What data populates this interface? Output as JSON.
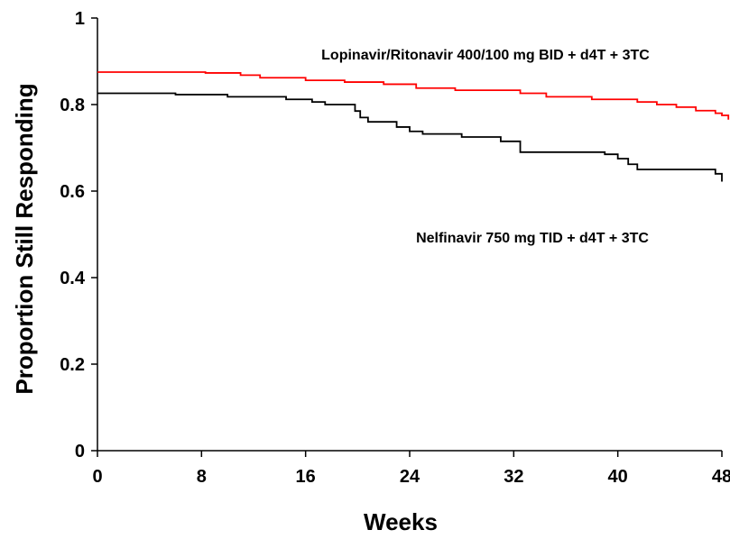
{
  "chart_data": {
    "type": "line",
    "title": "",
    "xlabel": "Weeks",
    "ylabel": "Proportion Still Responding",
    "xlim": [
      0,
      48
    ],
    "ylim": [
      0,
      1
    ],
    "xticks": [
      0,
      8,
      16,
      24,
      32,
      40,
      48
    ],
    "yticks": [
      0,
      0.2,
      0.4,
      0.6,
      0.8,
      1
    ],
    "xtick_labels": [
      "0",
      "8",
      "16",
      "24",
      "32",
      "40",
      "48"
    ],
    "ytick_labels": [
      "0",
      "0.2",
      "0.4",
      "0.6",
      "0.8",
      "1"
    ],
    "grid": false,
    "legend": "none",
    "series": [
      {
        "name": "Lopinavir/Ritonavir 400/100 mg BID + d4T + 3TC",
        "color": "#ff0000",
        "step": true,
        "x": [
          0,
          8.3,
          11.0,
          12.5,
          16.0,
          19.0,
          22.0,
          24.5,
          27.5,
          32.5,
          34.5,
          38.0,
          41.5,
          43.0,
          44.5,
          46.0,
          47.5,
          48.0,
          48.5
        ],
        "y": [
          0.875,
          0.873,
          0.868,
          0.862,
          0.856,
          0.852,
          0.847,
          0.838,
          0.833,
          0.826,
          0.818,
          0.812,
          0.806,
          0.8,
          0.794,
          0.786,
          0.78,
          0.775,
          0.765
        ]
      },
      {
        "name": "Nelfinavir 750 mg TID + d4T + 3TC",
        "color": "#000000",
        "step": true,
        "x": [
          0,
          6.0,
          10.0,
          14.5,
          16.5,
          17.5,
          19.8,
          20.2,
          20.8,
          23.0,
          24.0,
          25.0,
          28.0,
          31.0,
          32.5,
          39.0,
          40.0,
          40.8,
          41.5,
          47.5,
          48.0
        ],
        "y": [
          0.826,
          0.823,
          0.818,
          0.812,
          0.806,
          0.8,
          0.785,
          0.77,
          0.76,
          0.748,
          0.738,
          0.732,
          0.725,
          0.715,
          0.69,
          0.685,
          0.675,
          0.662,
          0.65,
          0.64,
          0.622
        ]
      }
    ],
    "annotations": [
      {
        "text": "Lopinavir/Ritonavir 400/100 mg BID + d4T + 3TC",
        "series": 0
      },
      {
        "text": "Nelfinavir 750 mg TID + d4T + 3TC",
        "series": 1
      }
    ]
  }
}
